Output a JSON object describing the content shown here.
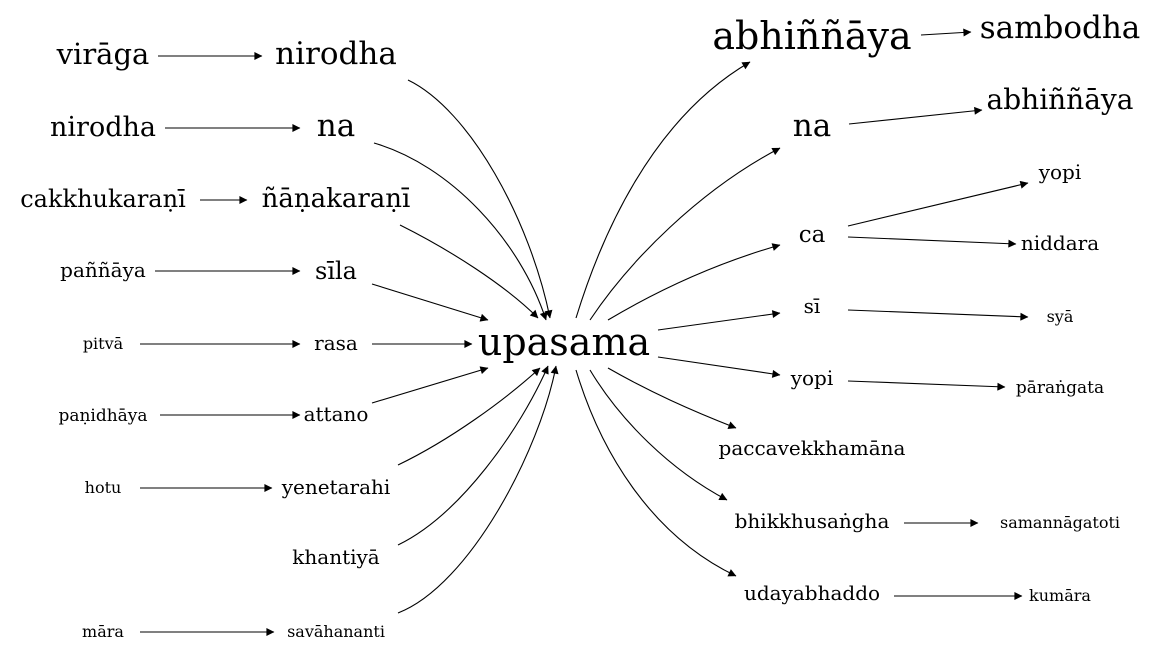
{
  "center": "upasama",
  "nodes": {
    "viraga": "virāga",
    "nirodha_in": "nirodha",
    "nirodha_src": "nirodha",
    "na_in": "na",
    "cakkhukarani": "cakkhukaraṇī",
    "nanakarani": "ñāṇakaraṇī",
    "pannaya": "paññāya",
    "sila": "sīla",
    "pitva": "pitvā",
    "rasa": "rasa",
    "panidhaya": "paṇidhāya",
    "attano": "attano",
    "hotu": "hotu",
    "yenetarahi": "yenetarahi",
    "khantiya": "khantiyā",
    "mara": "māra",
    "savahananti": "savāhananti",
    "abhinnaya_out": "abhiññāya",
    "sambodha": "sambodha",
    "na_out": "na",
    "abhinnaya_2": "abhiññāya",
    "ca": "ca",
    "yopi_1": "yopi",
    "niddara": "niddara",
    "si": "sī",
    "sya": "syā",
    "yopi_2": "yopi",
    "paranggata": "pāraṅgata",
    "paccavekkhamana": "paccavekkhamāna",
    "bhikkhusangha": "bhikkhusaṅgha",
    "samannagatoti": "samannāgatoti",
    "udayabhaddo": "udayabhaddo",
    "kumara": "kumāra"
  }
}
